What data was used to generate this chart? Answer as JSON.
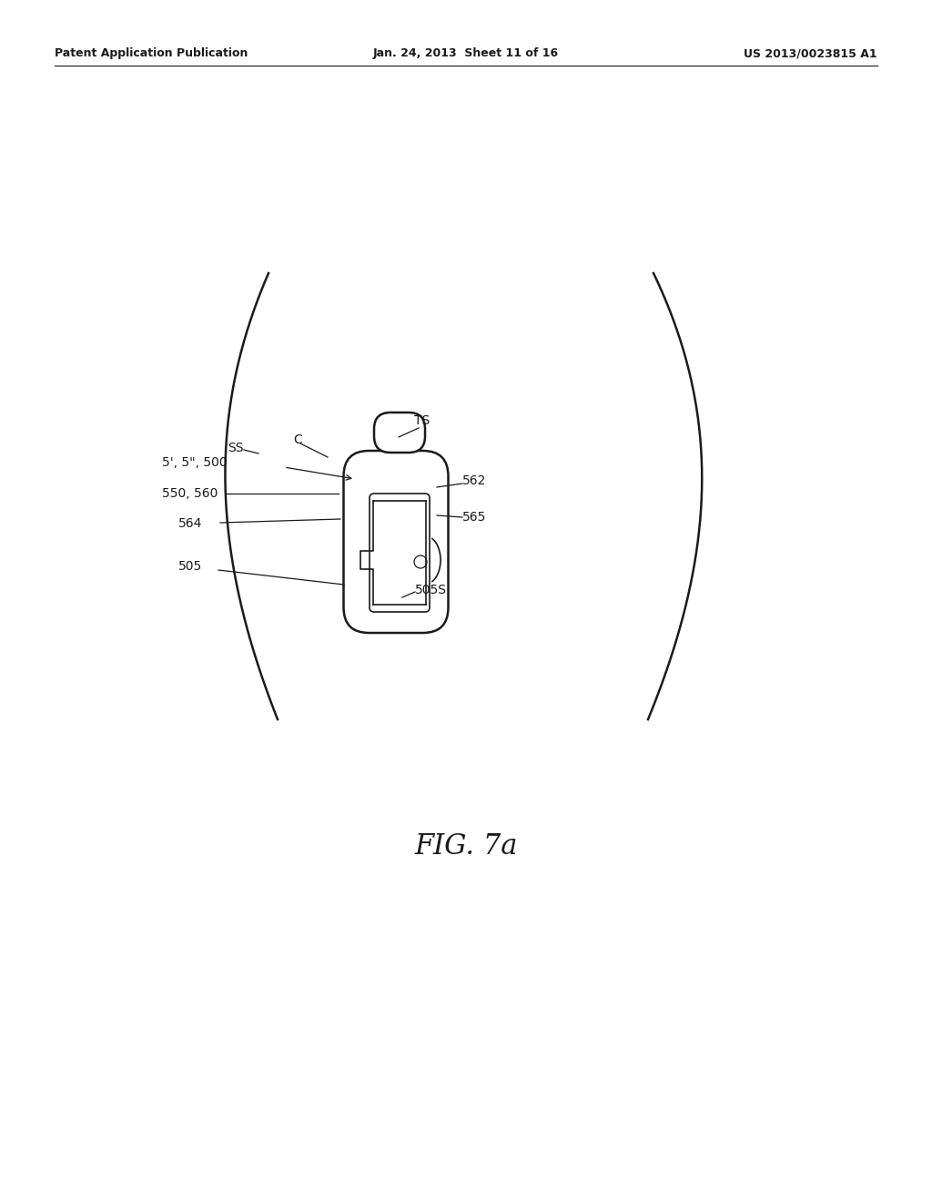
{
  "bg_color": "#ffffff",
  "line_color": "#1a1a1a",
  "header_left": "Patent Application Publication",
  "header_mid": "Jan. 24, 2013  Sheet 11 of 16",
  "header_right": "US 2013/0023815 A1",
  "figure_label": "FIG. 7a",
  "label_fontsize": 10,
  "header_fontsize": 9,
  "fig_label_fontsize": 22
}
